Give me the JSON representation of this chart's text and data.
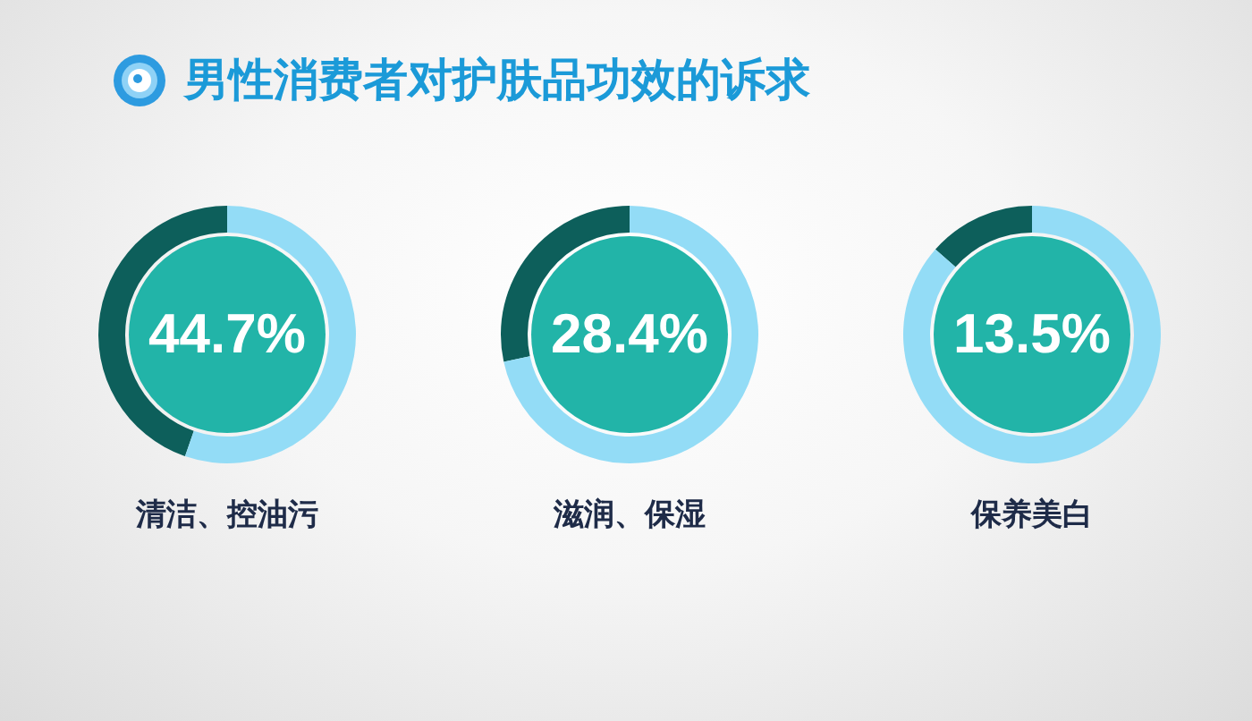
{
  "chart_data": [
    {
      "type": "other",
      "title": "男性消费者对护肤品功效的诉求"
    },
    {
      "type": "donut",
      "title": "清洁、控油污",
      "categories": [
        null,
        null
      ],
      "values": [
        44.7,
        55.3
      ],
      "colors": [
        "#0d5f5b",
        "#93dcf6"
      ],
      "value_labels": [
        "44.7%",
        null
      ]
    },
    {
      "type": "donut",
      "title": "滋润、保湿",
      "categories": [
        null,
        null
      ],
      "values": [
        28.4,
        71.6
      ],
      "colors": [
        "#0d5f5b",
        "#93dcf6"
      ],
      "value_labels": [
        "28.4%",
        null
      ]
    },
    {
      "type": "donut",
      "title": "保养美白",
      "categories": [
        null,
        null
      ],
      "values": [
        13.5,
        86.5
      ],
      "colors": [
        "#0d5f5b",
        "#93dcf6"
      ],
      "value_labels": [
        "13.5%",
        null
      ]
    }
  ]
}
